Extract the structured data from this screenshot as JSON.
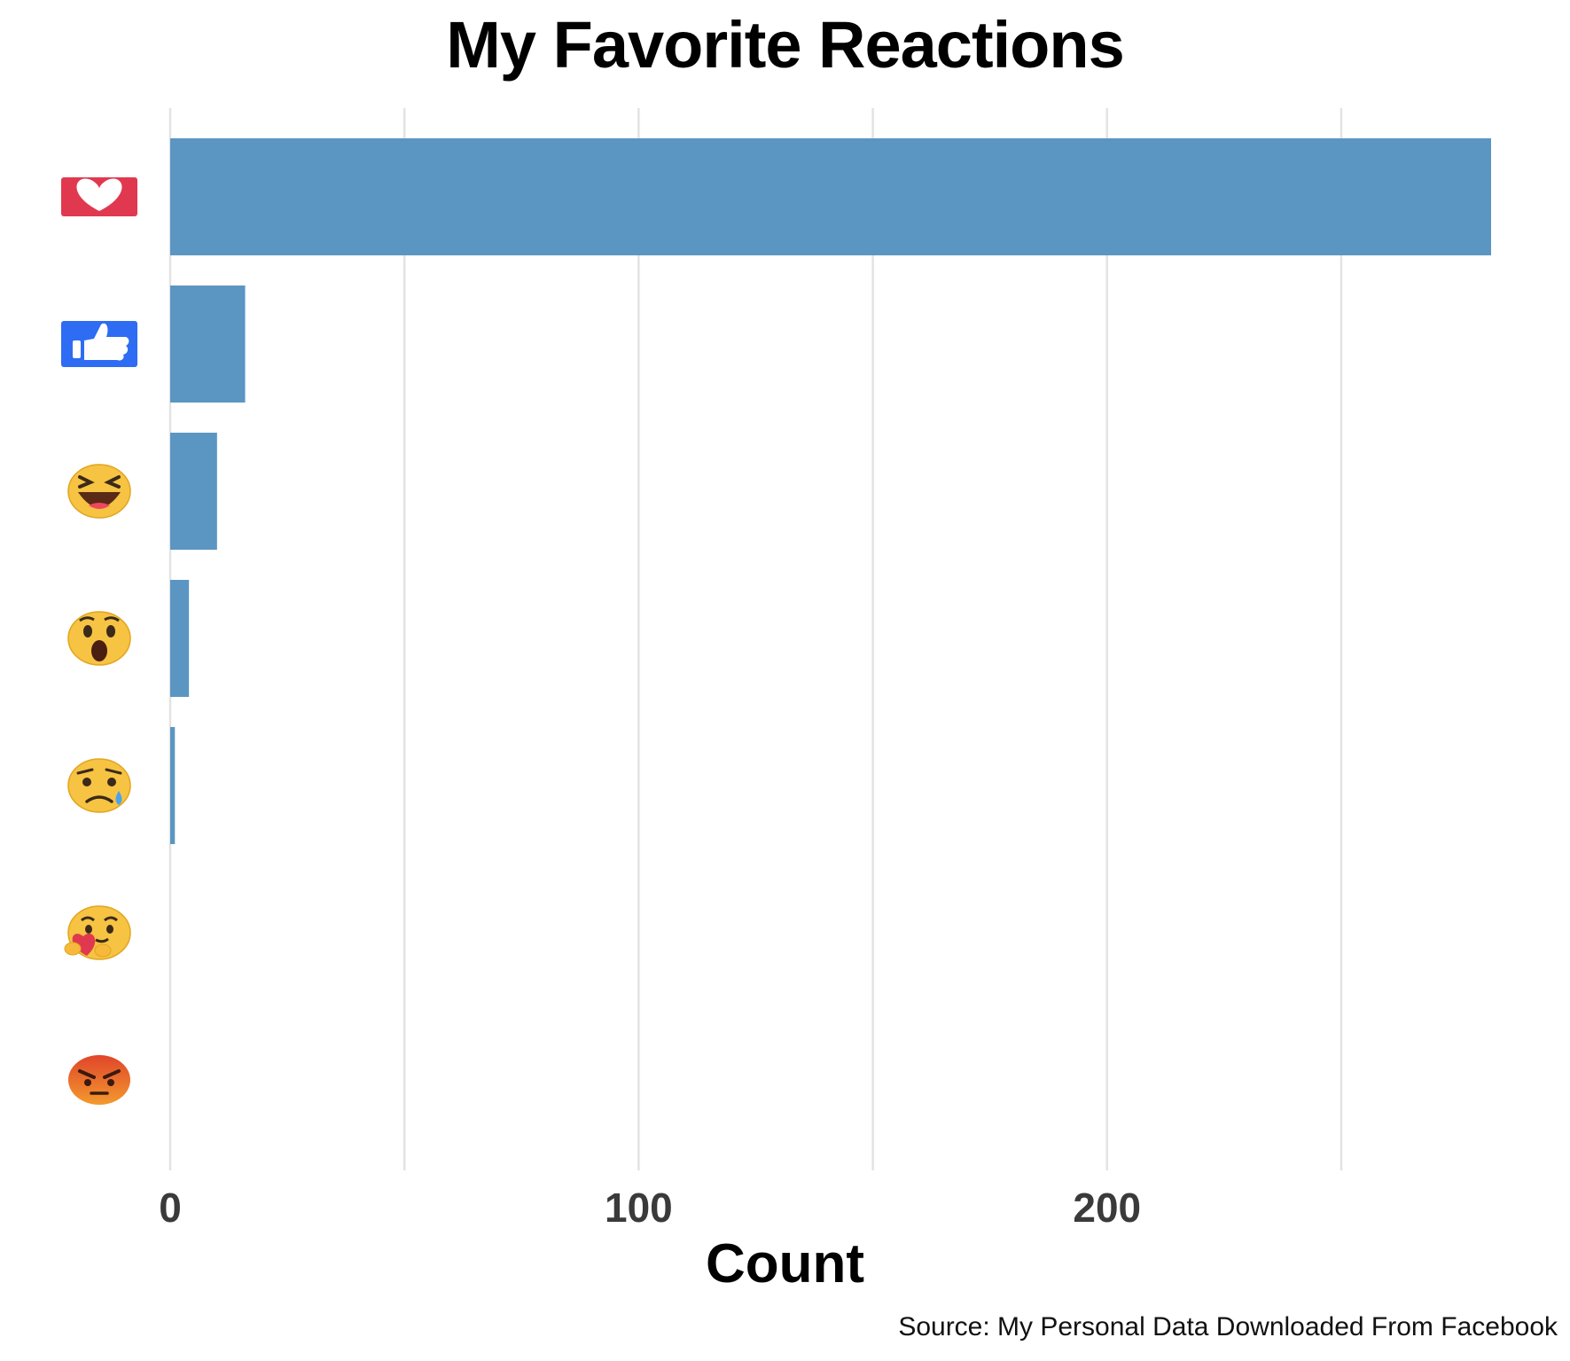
{
  "chart_data": {
    "type": "bar",
    "orientation": "horizontal",
    "title": "My Favorite Reactions",
    "xlabel": "Count",
    "ylabel": "",
    "categories": [
      "love",
      "like",
      "haha",
      "wow",
      "sad",
      "care",
      "angry"
    ],
    "category_icons": [
      "heart-icon",
      "thumbs-up-icon",
      "laughing-face-icon",
      "surprised-face-icon",
      "sad-face-icon",
      "care-hug-face-icon",
      "angry-face-icon"
    ],
    "values": [
      282,
      16,
      10,
      4,
      1,
      0,
      0
    ],
    "xlim": [
      0,
      282
    ],
    "x_ticks": [
      0,
      100,
      200
    ],
    "x_gridlines": [
      0,
      50,
      100,
      150,
      200,
      250
    ],
    "grid": "vertical",
    "bar_color": "#5b96c2",
    "caption": "Source: My Personal Data Downloaded From Facebook"
  }
}
